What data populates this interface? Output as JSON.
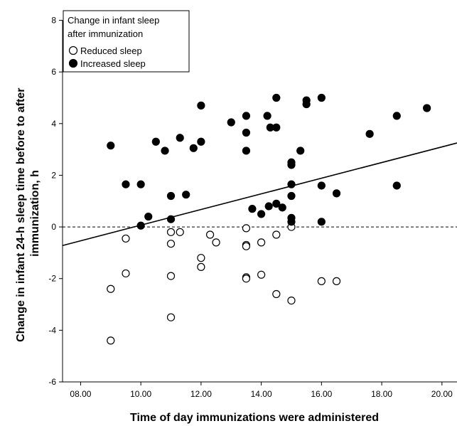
{
  "chart_data": {
    "type": "scatter",
    "title": "",
    "xlabel": "Time of day immunizations were administered",
    "ylabel_lines": [
      "Change in infant 24-h sleep time before to after",
      "immunization, h"
    ],
    "xlim": [
      7.4,
      20.5
    ],
    "ylim": [
      -6,
      8.4
    ],
    "x_ticks": [
      8,
      10,
      12,
      14,
      16,
      18,
      20
    ],
    "x_tick_labels": [
      "08.00",
      "10.00",
      "12.00",
      "14.00",
      "16.00",
      "18.00",
      "20.00"
    ],
    "y_ticks": [
      -6,
      -4,
      -2,
      0,
      2,
      4,
      6,
      8
    ],
    "y_tick_labels": [
      "-6",
      "-4",
      "-2",
      "0",
      "2",
      "4",
      "6",
      "8"
    ],
    "grid": false,
    "legend": {
      "placement": "top-left",
      "title_lines": [
        "Change in infant sleep",
        "after immunization"
      ],
      "entries": [
        "Reduced sleep",
        "Increased sleep"
      ]
    },
    "reference_line": {
      "y": 0,
      "style": "dashed"
    },
    "fit_line": {
      "x": [
        7.4,
        20.5
      ],
      "y": [
        -0.72,
        3.25
      ]
    },
    "series": [
      {
        "name": "Reduced sleep",
        "marker": "open-circle",
        "points": [
          [
            9.0,
            -2.4
          ],
          [
            9.0,
            -4.4
          ],
          [
            9.5,
            -0.45
          ],
          [
            9.5,
            -1.8
          ],
          [
            11.0,
            -0.2
          ],
          [
            11.0,
            -0.65
          ],
          [
            11.0,
            -1.9
          ],
          [
            11.0,
            -3.5
          ],
          [
            11.3,
            -0.2
          ],
          [
            12.0,
            -1.2
          ],
          [
            12.0,
            -1.55
          ],
          [
            12.3,
            -0.3
          ],
          [
            12.5,
            -0.6
          ],
          [
            13.5,
            -0.05
          ],
          [
            13.5,
            -0.7
          ],
          [
            13.5,
            -0.75
          ],
          [
            13.5,
            -1.95
          ],
          [
            13.5,
            -2.0
          ],
          [
            14.0,
            -0.6
          ],
          [
            14.0,
            -1.85
          ],
          [
            14.5,
            -0.3
          ],
          [
            14.5,
            -2.6
          ],
          [
            15.0,
            0.0
          ],
          [
            15.0,
            -2.85
          ],
          [
            16.0,
            -2.1
          ],
          [
            16.5,
            -2.1
          ]
        ]
      },
      {
        "name": "Increased sleep",
        "marker": "filled-circle",
        "points": [
          [
            9.0,
            3.15
          ],
          [
            9.5,
            1.65
          ],
          [
            10.0,
            1.65
          ],
          [
            10.0,
            0.05
          ],
          [
            10.25,
            0.4
          ],
          [
            10.5,
            3.3
          ],
          [
            10.8,
            2.95
          ],
          [
            11.0,
            1.2
          ],
          [
            11.0,
            0.3
          ],
          [
            11.3,
            3.45
          ],
          [
            11.5,
            1.25
          ],
          [
            11.75,
            3.05
          ],
          [
            12.0,
            4.7
          ],
          [
            12.0,
            3.3
          ],
          [
            13.0,
            4.05
          ],
          [
            13.5,
            4.3
          ],
          [
            13.5,
            3.65
          ],
          [
            13.5,
            2.95
          ],
          [
            13.7,
            0.7
          ],
          [
            14.0,
            0.5
          ],
          [
            14.2,
            4.3
          ],
          [
            14.25,
            0.8
          ],
          [
            14.3,
            3.85
          ],
          [
            14.5,
            5.0
          ],
          [
            14.5,
            3.85
          ],
          [
            14.5,
            0.9
          ],
          [
            14.7,
            0.75
          ],
          [
            15.0,
            2.5
          ],
          [
            15.0,
            2.4
          ],
          [
            15.0,
            1.65
          ],
          [
            15.0,
            1.2
          ],
          [
            15.0,
            0.35
          ],
          [
            15.0,
            0.2
          ],
          [
            15.3,
            2.95
          ],
          [
            15.5,
            4.9
          ],
          [
            15.5,
            4.75
          ],
          [
            16.0,
            5.0
          ],
          [
            16.0,
            1.6
          ],
          [
            16.0,
            0.2
          ],
          [
            16.5,
            1.3
          ],
          [
            17.6,
            3.6
          ],
          [
            18.5,
            4.3
          ],
          [
            18.5,
            1.6
          ],
          [
            19.5,
            4.6
          ]
        ]
      }
    ]
  }
}
